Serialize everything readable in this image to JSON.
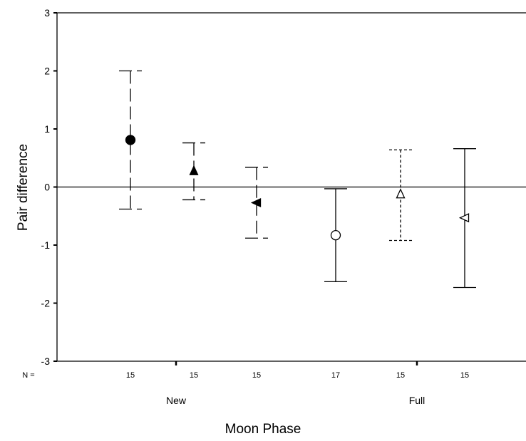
{
  "chart_data": {
    "type": "errorbar",
    "xlabel": "Moon Phase",
    "ylabel": "Pair difference",
    "ylim": [
      -3,
      3
    ],
    "yticks": [
      "3",
      "2",
      "1",
      "0",
      "-1",
      "-2",
      "-3"
    ],
    "n_label": "N =",
    "phase_labels": [
      "New",
      "Full"
    ],
    "reference_line": 0,
    "groups": [
      {
        "n": "15",
        "mean": 0.81,
        "upper": 2.0,
        "lower": -0.38,
        "marker": "filled-circle",
        "line": "long-dash"
      },
      {
        "n": "15",
        "mean": 0.28,
        "upper": 0.76,
        "lower": -0.22,
        "marker": "filled-triangle-up",
        "line": "long-dash"
      },
      {
        "n": "15",
        "mean": -0.27,
        "upper": 0.34,
        "lower": -0.88,
        "marker": "filled-triangle-left",
        "line": "long-dash"
      },
      {
        "n": "17",
        "mean": -0.83,
        "upper": -0.03,
        "lower": -1.63,
        "marker": "open-circle",
        "line": "solid"
      },
      {
        "n": "15",
        "mean": -0.12,
        "upper": 0.64,
        "lower": -0.92,
        "marker": "open-triangle-up",
        "line": "short-dash"
      },
      {
        "n": "15",
        "mean": -0.53,
        "upper": 0.66,
        "lower": -1.73,
        "marker": "open-triangle-left",
        "line": "solid"
      }
    ]
  }
}
